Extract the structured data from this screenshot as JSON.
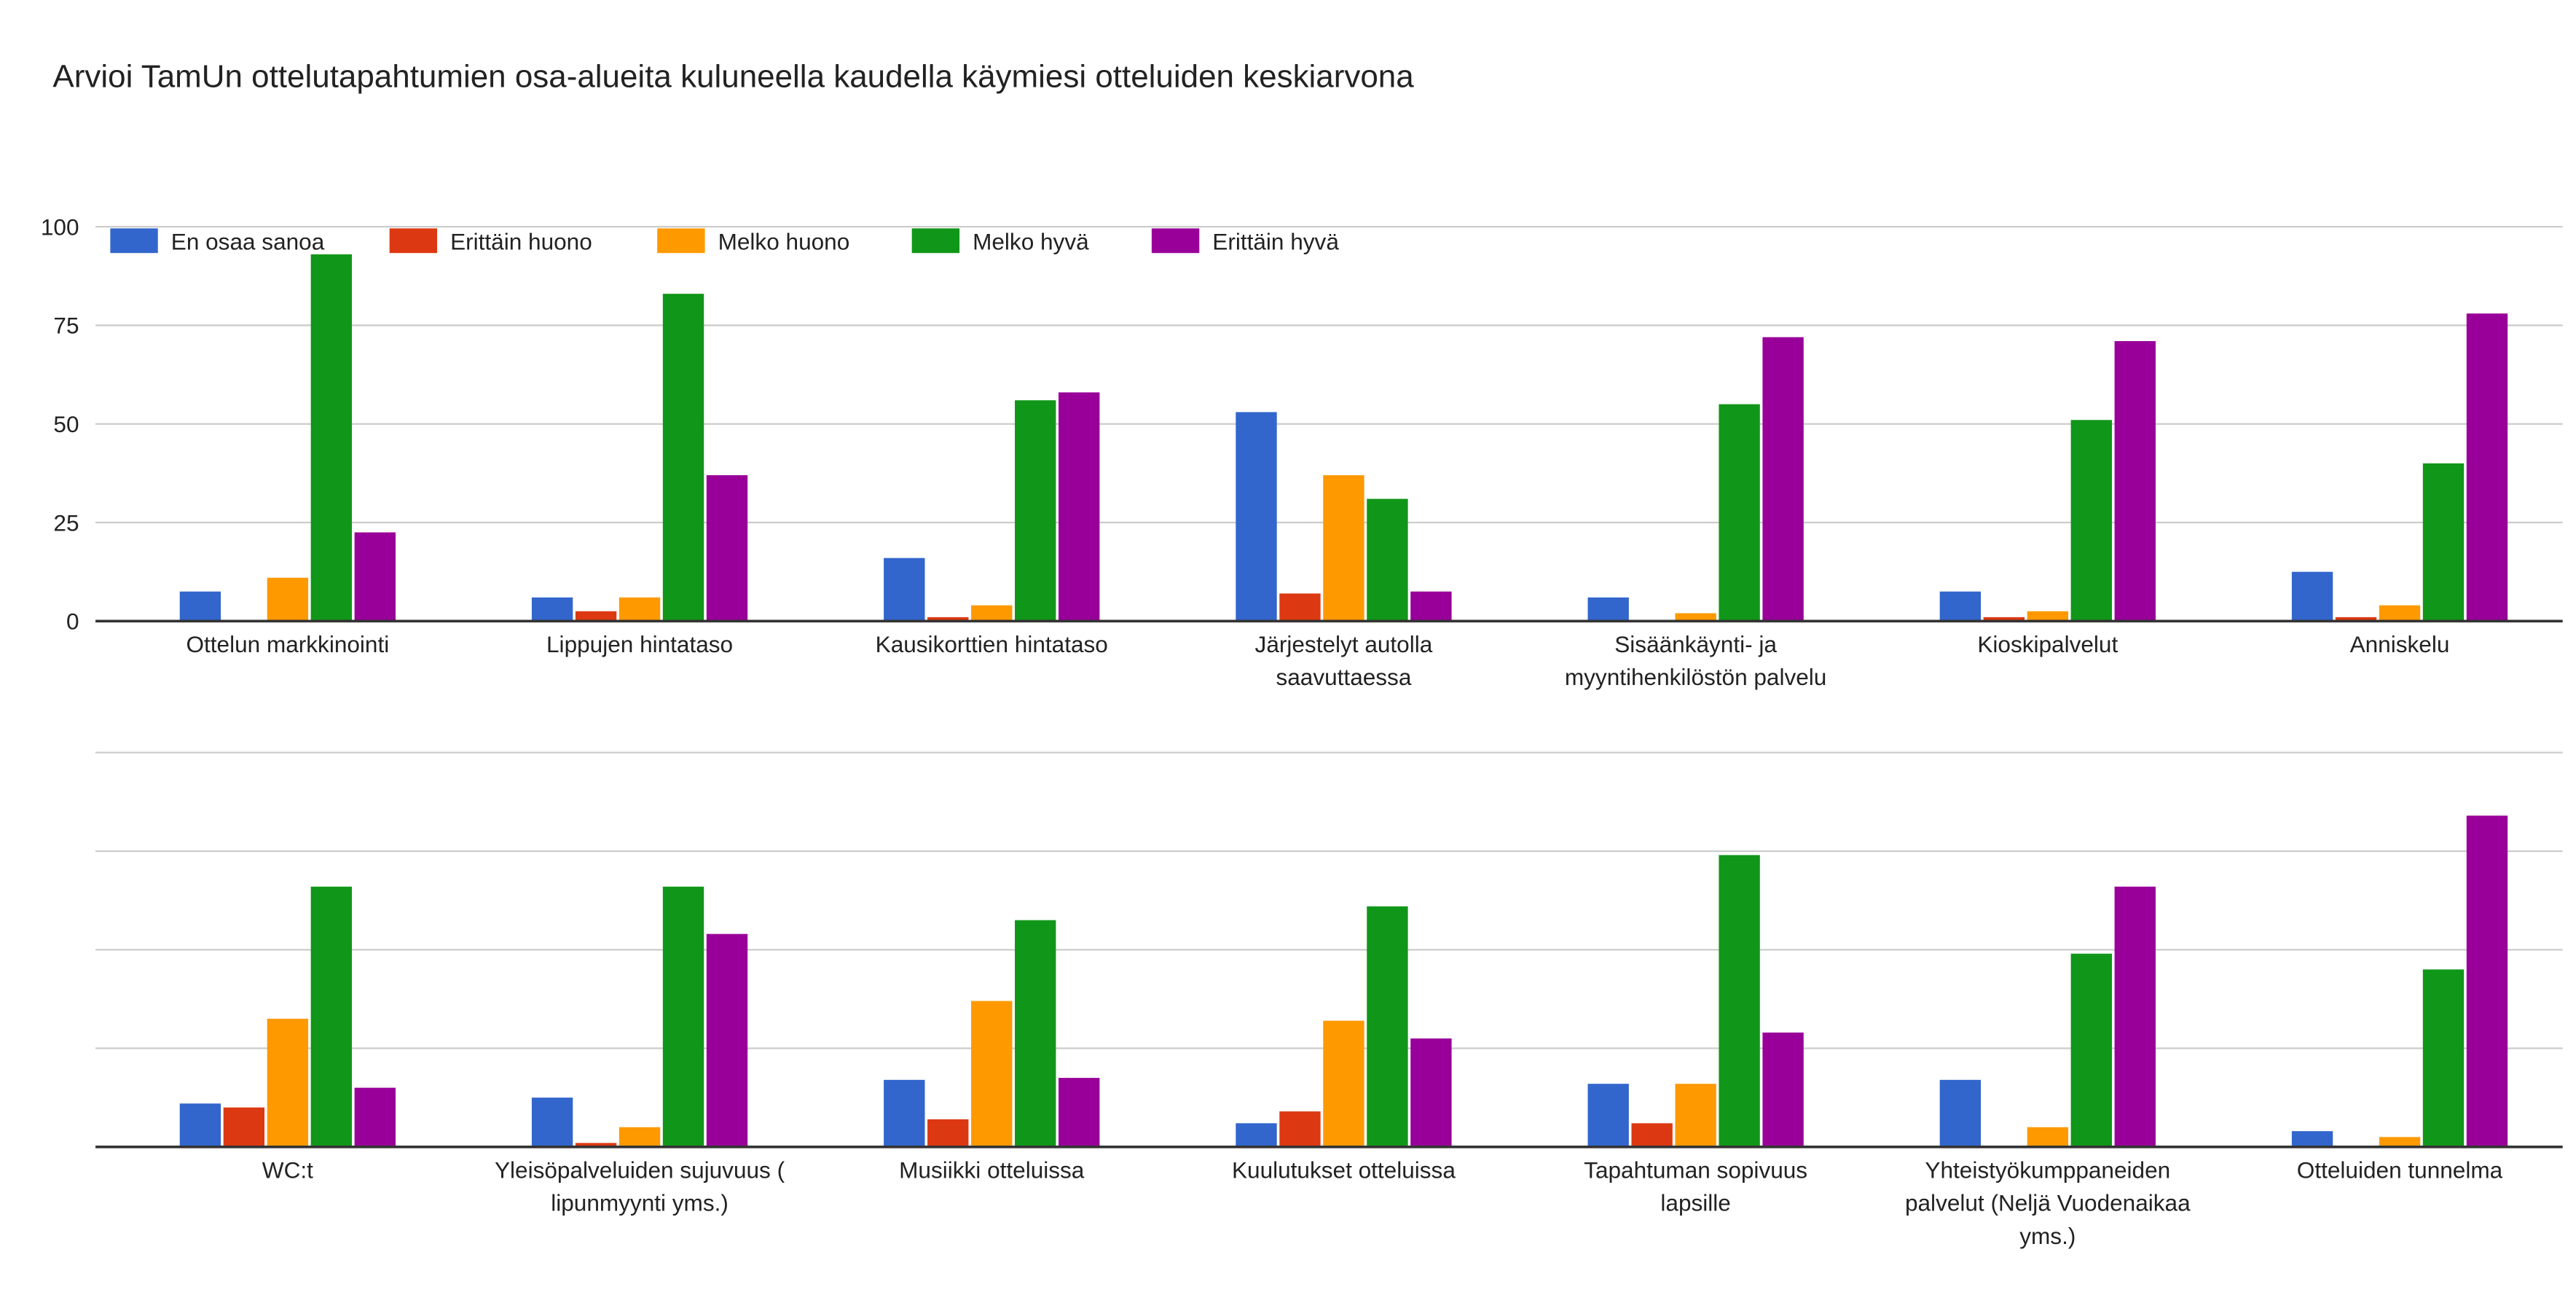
{
  "chart_data": [
    {
      "type": "bar",
      "title": "Arvioi TamUn ottelutapahtumien osa-alueita kuluneella kaudella käymiesi otteluiden keskiarvona",
      "ylim": [
        0,
        100
      ],
      "yticks": [
        "0",
        "25",
        "50",
        "75",
        "100"
      ],
      "yticks_values": [
        0,
        25,
        50,
        75,
        100
      ],
      "grid": true,
      "legend_position": "top-left",
      "categories": [
        [
          "Ottelun markkinointi"
        ],
        [
          "Lippujen hintataso"
        ],
        [
          "Kausikorttien hintataso"
        ],
        [
          "Järjestelyt autolla",
          "saavuttaessa"
        ],
        [
          "Sisäänkäynti- ja",
          "myyntihenkilöstön palvelu"
        ],
        [
          "Kioskipalvelut"
        ],
        [
          "Anniskelu"
        ]
      ],
      "series": [
        {
          "name": "En osaa sanoa",
          "color": "#3366cc",
          "values": [
            7.5,
            6,
            16,
            53,
            6,
            7.5,
            12.5
          ]
        },
        {
          "name": "Erittäin huono",
          "color": "#dc3912",
          "values": [
            0,
            2.5,
            1,
            7,
            0,
            1,
            1
          ]
        },
        {
          "name": "Melko huono",
          "color": "#ff9900",
          "values": [
            11,
            6,
            4,
            37,
            2,
            2.5,
            4
          ]
        },
        {
          "name": "Melko hyvä",
          "color": "#109618",
          "values": [
            93,
            83,
            56,
            31,
            55,
            51,
            40
          ]
        },
        {
          "name": "Erittäin hyvä",
          "color": "#990099",
          "values": [
            22.5,
            37,
            58,
            7.5,
            72,
            71,
            78
          ]
        }
      ]
    },
    {
      "type": "bar",
      "ylim": [
        0,
        100
      ],
      "grid": true,
      "categories": [
        [
          "WC:t"
        ],
        [
          "Yleisöpalveluiden sujuvuus (",
          "lipunmyynti yms.)"
        ],
        [
          "Musiikki otteluissa"
        ],
        [
          "Kuulutukset otteluissa"
        ],
        [
          "Tapahtuman sopivuus",
          "lapsille"
        ],
        [
          "Yhteistyökumppaneiden",
          "palvelut (Neljä Vuodenaikaa",
          "yms.)"
        ],
        [
          "Otteluiden tunnelma"
        ]
      ],
      "series": [
        {
          "name": "En osaa sanoa",
          "color": "#3366cc",
          "values": [
            11,
            12.5,
            17,
            6,
            16,
            17,
            4
          ]
        },
        {
          "name": "Erittäin huono",
          "color": "#dc3912",
          "values": [
            10,
            1,
            7,
            9,
            6,
            0,
            0
          ]
        },
        {
          "name": "Melko huono",
          "color": "#ff9900",
          "values": [
            32.5,
            5,
            37,
            32,
            16,
            5,
            2.5
          ]
        },
        {
          "name": "Melko hyvä",
          "color": "#109618",
          "values": [
            66,
            66,
            57.5,
            61,
            74,
            49,
            45
          ]
        },
        {
          "name": "Erittäin hyvä",
          "color": "#990099",
          "values": [
            15,
            54,
            17.5,
            27.5,
            29,
            66,
            84
          ]
        }
      ]
    }
  ]
}
